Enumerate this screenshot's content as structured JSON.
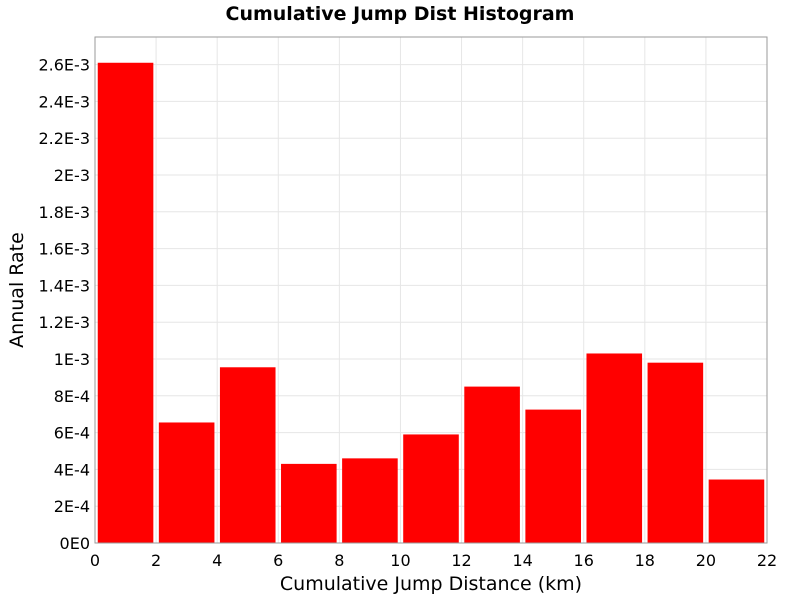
{
  "chart_data": {
    "type": "bar",
    "title": "Cumulative Jump Dist Histogram",
    "xlabel": "Cumulative Jump Distance (km)",
    "ylabel": "Annual Rate",
    "xlim": [
      0,
      22
    ],
    "ylim": [
      0,
      0.00275
    ],
    "x_ticks": [
      "0",
      "2",
      "4",
      "6",
      "8",
      "10",
      "12",
      "14",
      "16",
      "18",
      "20",
      "22"
    ],
    "y_ticks": [
      "0E0",
      "2E-4",
      "4E-4",
      "6E-4",
      "8E-4",
      "1E-3",
      "1.2E-3",
      "1.4E-3",
      "1.6E-3",
      "1.8E-3",
      "2E-3",
      "2.2E-3",
      "2.4E-3",
      "2.6E-3"
    ],
    "bin_width": 2,
    "bin_centers": [
      1,
      3,
      5,
      7,
      9,
      11,
      13,
      15,
      17,
      19,
      21
    ],
    "values": [
      0.00261,
      0.000655,
      0.000955,
      0.00043,
      0.00046,
      0.00059,
      0.00085,
      0.000725,
      0.00103,
      0.00098,
      0.000345
    ],
    "bar_color": "#ff0000",
    "grid": true,
    "legend": false
  }
}
